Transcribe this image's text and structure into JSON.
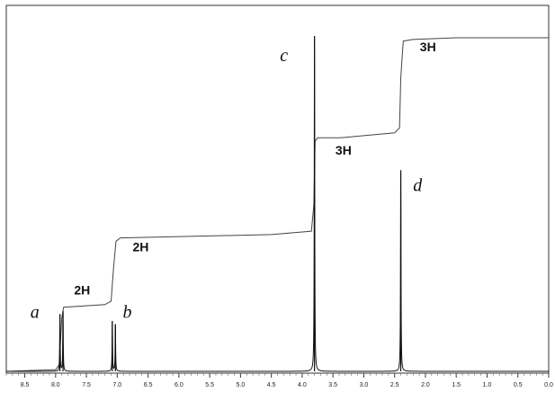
{
  "chart_data": {
    "type": "line",
    "title": "",
    "xlabel": "",
    "ylabel": "",
    "x_reversed": true,
    "xlim": [
      0.0,
      8.8
    ],
    "x_ticks": [
      {
        "value": 8.5,
        "label": "8.5"
      },
      {
        "value": 8.0,
        "label": "8.0"
      },
      {
        "value": 7.5,
        "label": "7.5"
      },
      {
        "value": 7.0,
        "label": "7.0"
      },
      {
        "value": 6.5,
        "label": "6.5"
      },
      {
        "value": 6.0,
        "label": "6.0"
      },
      {
        "value": 5.5,
        "label": "5.5"
      },
      {
        "value": 5.0,
        "label": "5.0"
      },
      {
        "value": 4.5,
        "label": "4.5"
      },
      {
        "value": 4.0,
        "label": "4.0"
      },
      {
        "value": 3.5,
        "label": "3.5"
      },
      {
        "value": 3.0,
        "label": "3.0"
      },
      {
        "value": 2.5,
        "label": "2.5"
      },
      {
        "value": 2.0,
        "label": "2.0"
      },
      {
        "value": 1.5,
        "label": "1.5"
      },
      {
        "value": 1.0,
        "label": "1.0"
      },
      {
        "value": 0.5,
        "label": "0.5"
      },
      {
        "value": 0.0,
        "label": "0.0"
      }
    ],
    "peaks": [
      {
        "shift": 7.93,
        "height": 0.17
      },
      {
        "shift": 7.88,
        "height": 0.18
      },
      {
        "shift": 7.08,
        "height": 0.15
      },
      {
        "shift": 7.03,
        "height": 0.14
      },
      {
        "shift": 3.8,
        "height": 1.0
      },
      {
        "shift": 2.4,
        "height": 0.6
      }
    ],
    "integral": [
      {
        "x": 8.8,
        "y": 0.0
      },
      {
        "x": 8.0,
        "y": 0.005
      },
      {
        "x": 7.94,
        "y": 0.02
      },
      {
        "x": 7.9,
        "y": 0.16
      },
      {
        "x": 7.87,
        "y": 0.192
      },
      {
        "x": 7.2,
        "y": 0.2
      },
      {
        "x": 7.1,
        "y": 0.21
      },
      {
        "x": 7.06,
        "y": 0.31
      },
      {
        "x": 7.02,
        "y": 0.39
      },
      {
        "x": 6.95,
        "y": 0.4
      },
      {
        "x": 4.5,
        "y": 0.41
      },
      {
        "x": 3.85,
        "y": 0.42
      },
      {
        "x": 3.81,
        "y": 0.5
      },
      {
        "x": 3.79,
        "y": 0.69
      },
      {
        "x": 3.75,
        "y": 0.7
      },
      {
        "x": 3.4,
        "y": 0.7
      },
      {
        "x": 2.5,
        "y": 0.715
      },
      {
        "x": 2.42,
        "y": 0.73
      },
      {
        "x": 2.4,
        "y": 0.88
      },
      {
        "x": 2.36,
        "y": 0.99
      },
      {
        "x": 2.2,
        "y": 0.995
      },
      {
        "x": 1.5,
        "y": 1.0
      },
      {
        "x": 0.0,
        "y": 1.0
      }
    ],
    "integral_labels": [
      {
        "text": "2H",
        "shift": 7.7,
        "level": 0.23
      },
      {
        "text": "2H",
        "shift": 6.75,
        "level": 0.36
      },
      {
        "text": "3H",
        "shift": 3.46,
        "level": 0.65
      },
      {
        "text": "3H",
        "shift": 2.09,
        "level": 0.96
      }
    ],
    "peak_labels": [
      {
        "text": "a",
        "shift": 8.41,
        "level": 0.16
      },
      {
        "text": "b",
        "shift": 6.91,
        "level": 0.16
      },
      {
        "text": "c",
        "shift": 4.36,
        "level": 0.93
      },
      {
        "text": "d",
        "shift": 2.2,
        "level": 0.54
      }
    ],
    "grid": false,
    "legend": "none"
  }
}
